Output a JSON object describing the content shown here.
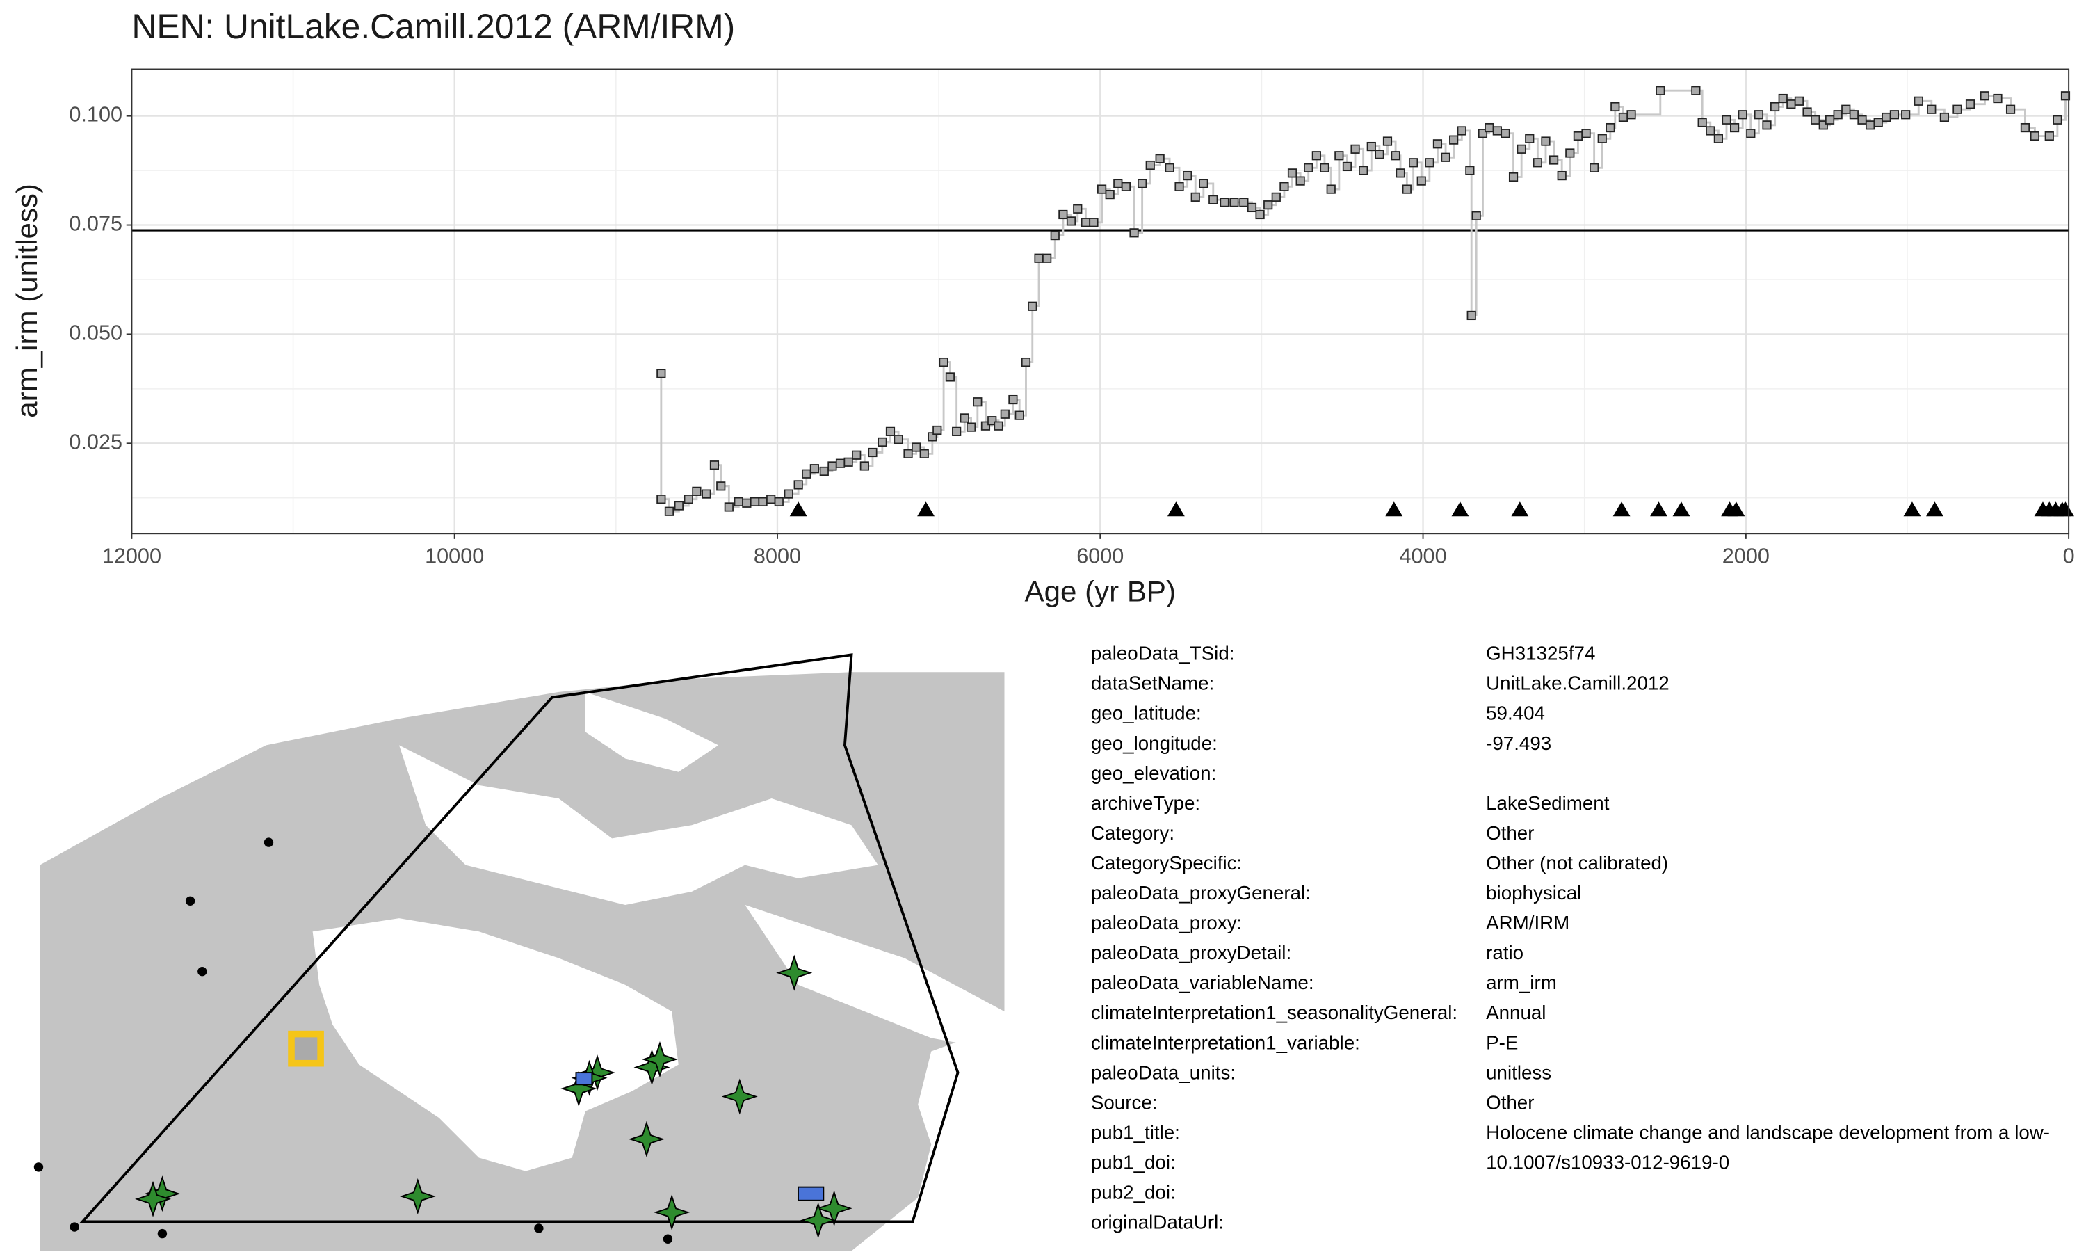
{
  "chart_data": {
    "type": "step",
    "title": "NEN: UnitLake.Camill.2012 (ARM/IRM)",
    "x_label": "Age (yr BP)",
    "y_label": "arm_irm (unitless)",
    "xlim": [
      12000,
      0
    ],
    "xticks": [
      12000,
      10000,
      8000,
      6000,
      4000,
      2000,
      0
    ],
    "x_minor_ticks": [
      11000,
      9000,
      7000,
      5000,
      3000,
      1000
    ],
    "ylim": [
      0.0043,
      0.1107
    ],
    "yticks": [
      {
        "value": 0.025,
        "label": "0.025"
      },
      {
        "value": 0.05,
        "label": "0.050"
      },
      {
        "value": 0.075,
        "label": "0.075"
      },
      {
        "value": 0.1,
        "label": "0.100"
      }
    ],
    "y_minor_ticks": [
      0.0125,
      0.0375,
      0.0625,
      0.0875
    ],
    "grid": true,
    "marker_color": "#aaaaaa",
    "line_color": "#c8c8c8",
    "reference_line": 0.0738,
    "chron_ages": [
      7870,
      7080,
      5530,
      4180,
      3770,
      3400,
      2770,
      2540,
      2400,
      2100,
      2060,
      970,
      830,
      160,
      120,
      80,
      40,
      20
    ],
    "chron_marker_y": 0.0098,
    "x": [
      8720,
      8720,
      8670,
      8610,
      8550,
      8500,
      8440,
      8390,
      8350,
      8300,
      8240,
      8190,
      8140,
      8090,
      8040,
      7990,
      7930,
      7870,
      7820,
      7770,
      7710,
      7660,
      7610,
      7560,
      7510,
      7460,
      7410,
      7350,
      7300,
      7250,
      7190,
      7140,
      7090,
      7040,
      7010,
      6970,
      6930,
      6890,
      6840,
      6800,
      6760,
      6710,
      6670,
      6630,
      6590,
      6540,
      6500,
      6460,
      6420,
      6380,
      6330,
      6280,
      6230,
      6180,
      6140,
      6090,
      6040,
      5990,
      5940,
      5890,
      5840,
      5790,
      5740,
      5690,
      5630,
      5570,
      5510,
      5460,
      5410,
      5360,
      5300,
      5230,
      5170,
      5110,
      5060,
      5010,
      4960,
      4910,
      4860,
      4810,
      4760,
      4710,
      4660,
      4610,
      4570,
      4520,
      4470,
      4420,
      4370,
      4320,
      4270,
      4220,
      4170,
      4140,
      4100,
      4060,
      4010,
      3960,
      3910,
      3860,
      3810,
      3760,
      3710,
      3700,
      3670,
      3630,
      3590,
      3540,
      3490,
      3440,
      3390,
      3340,
      3290,
      3240,
      3190,
      3140,
      3090,
      3040,
      2990,
      2940,
      2890,
      2840,
      2810,
      2760,
      2710,
      2530,
      2310,
      2270,
      2220,
      2170,
      2120,
      2070,
      2020,
      1970,
      1920,
      1870,
      1820,
      1770,
      1720,
      1670,
      1620,
      1570,
      1520,
      1480,
      1430,
      1380,
      1330,
      1280,
      1230,
      1180,
      1130,
      1080,
      1010,
      930,
      850,
      770,
      690,
      610,
      520,
      440,
      360,
      270,
      210,
      120,
      70,
      20
    ],
    "values": [
      0.041,
      0.0122,
      0.0094,
      0.0107,
      0.0122,
      0.014,
      0.0134,
      0.02,
      0.0152,
      0.0104,
      0.0116,
      0.0113,
      0.0116,
      0.0116,
      0.0122,
      0.0116,
      0.0134,
      0.0155,
      0.018,
      0.0192,
      0.0186,
      0.0198,
      0.0204,
      0.0207,
      0.0223,
      0.0198,
      0.0229,
      0.0253,
      0.0277,
      0.0259,
      0.0226,
      0.0241,
      0.0226,
      0.0265,
      0.028,
      0.0436,
      0.0402,
      0.0277,
      0.0308,
      0.0287,
      0.0345,
      0.029,
      0.0302,
      0.029,
      0.0317,
      0.035,
      0.0314,
      0.0436,
      0.0564,
      0.0674,
      0.0674,
      0.0726,
      0.0774,
      0.0759,
      0.0787,
      0.0756,
      0.0756,
      0.0832,
      0.082,
      0.0845,
      0.0838,
      0.0732,
      0.0845,
      0.0887,
      0.0902,
      0.0881,
      0.0838,
      0.0863,
      0.0814,
      0.0845,
      0.0808,
      0.0802,
      0.0802,
      0.0802,
      0.079,
      0.0774,
      0.0796,
      0.0814,
      0.0838,
      0.0869,
      0.0851,
      0.0881,
      0.0909,
      0.0881,
      0.0832,
      0.0909,
      0.0884,
      0.0924,
      0.0875,
      0.093,
      0.0912,
      0.0942,
      0.0909,
      0.0869,
      0.0832,
      0.0893,
      0.0851,
      0.0893,
      0.0936,
      0.0905,
      0.0945,
      0.0966,
      0.0875,
      0.0543,
      0.0771,
      0.096,
      0.0973,
      0.0966,
      0.096,
      0.086,
      0.0924,
      0.0948,
      0.0893,
      0.0942,
      0.0899,
      0.0863,
      0.0915,
      0.0954,
      0.096,
      0.0881,
      0.0948,
      0.0973,
      0.1021,
      0.0997,
      0.1003,
      0.1058,
      0.1058,
      0.0985,
      0.0966,
      0.0948,
      0.0991,
      0.0973,
      0.1003,
      0.096,
      0.1003,
      0.0979,
      0.1021,
      0.104,
      0.1027,
      0.1034,
      0.1009,
      0.0991,
      0.0979,
      0.0991,
      0.1003,
      0.1015,
      0.1003,
      0.0991,
      0.0979,
      0.0985,
      0.0997,
      0.1003,
      0.1003,
      0.1034,
      0.1015,
      0.0997,
      0.1015,
      0.1027,
      0.1046,
      0.104,
      0.1015,
      0.0973,
      0.0954,
      0.0954,
      0.0991,
      0.1046
    ]
  },
  "metadata": {
    "rows": [
      {
        "key": "paleoData_TSid:",
        "value": "GH31325f74"
      },
      {
        "key": "dataSetName:",
        "value": "UnitLake.Camill.2012"
      },
      {
        "key": "geo_latitude:",
        "value": "59.404"
      },
      {
        "key": "geo_longitude:",
        "value": "-97.493"
      },
      {
        "key": "geo_elevation:"
      },
      {
        "key": "archiveType:",
        "value": "LakeSediment"
      },
      {
        "key": "Category:",
        "value": "Other"
      },
      {
        "key": "CategorySpecific:",
        "value": "Other (not calibrated)"
      },
      {
        "key": "paleoData_proxyGeneral:",
        "value": "biophysical"
      },
      {
        "key": "paleoData_proxy:",
        "value": "ARM/IRM"
      },
      {
        "key": "paleoData_proxyDetail:",
        "value": "ratio"
      },
      {
        "key": "paleoData_variableName:",
        "value": "arm_irm"
      },
      {
        "key": "climateInterpretation1_seasonalityGeneral:",
        "value": "Annual"
      },
      {
        "key": "climateInterpretation1_variable:",
        "value": "P-E"
      },
      {
        "key": "paleoData_units:",
        "value": "unitless"
      },
      {
        "key": "Source:",
        "value": "Other"
      },
      {
        "key": "pub1_title:",
        "value": "Holocene climate change and landscape development from a low-"
      },
      {
        "key": "pub1_doi:",
        "value": "10.1007/s10933-012-9619-0"
      },
      {
        "key": "pub2_doi:"
      },
      {
        "key": "originalDataUrl:"
      }
    ]
  }
}
